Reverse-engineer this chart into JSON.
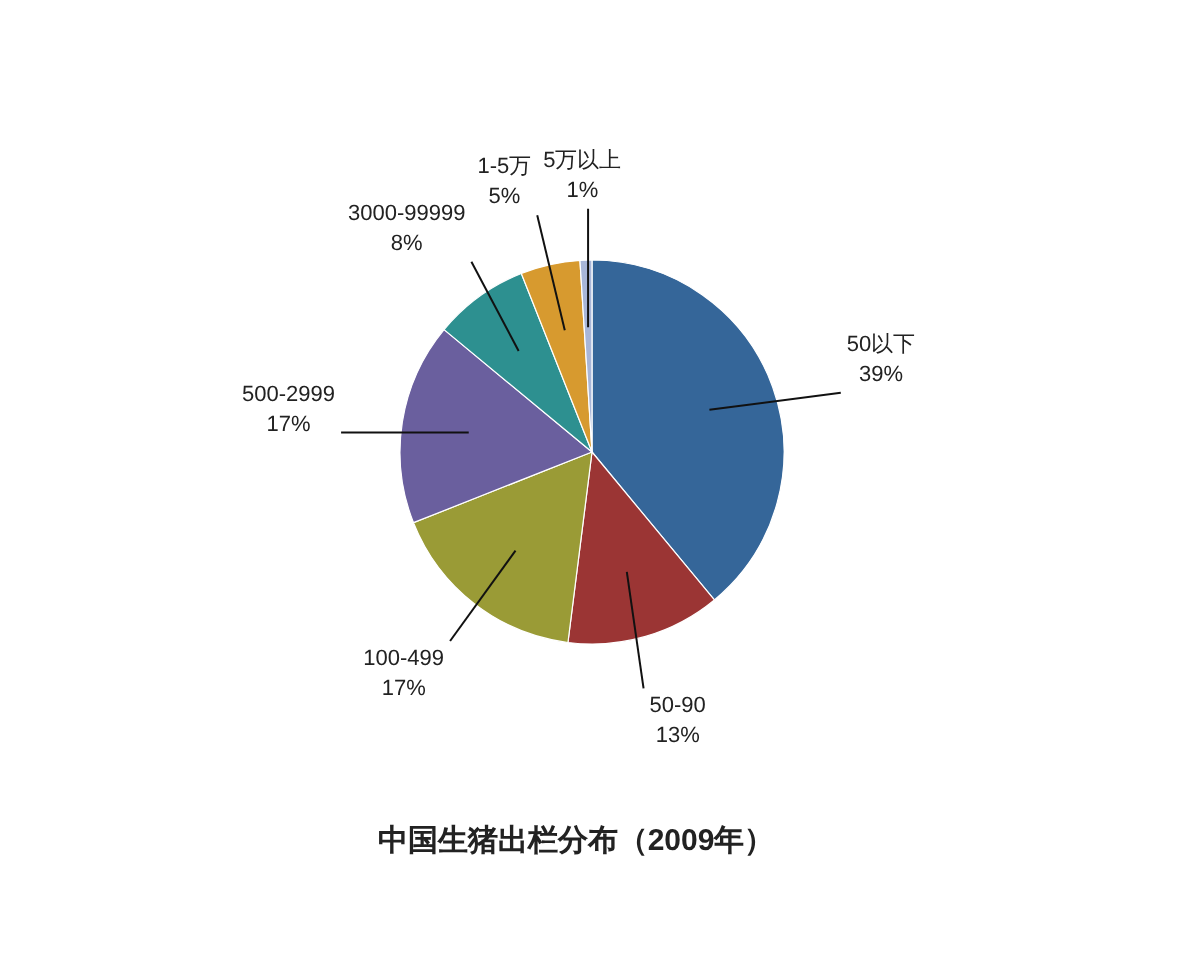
{
  "chart_data": {
    "type": "pie",
    "title": "中国生猪出栏分布（2009年）",
    "categories": [
      "50以下",
      "50-90",
      "100-499",
      "500-2999",
      "3000-99999",
      "1-5万",
      "5万以上"
    ],
    "values": [
      39,
      13,
      17,
      17,
      8,
      5,
      1
    ],
    "value_labels": [
      "39%",
      "13%",
      "17%",
      "17%",
      "8%",
      "5%",
      "1%"
    ],
    "colors": [
      "#356699",
      "#9b3534",
      "#9a9b36",
      "#6a5f9e",
      "#2d9090",
      "#d79a2f",
      "#a8b6d8"
    ]
  }
}
